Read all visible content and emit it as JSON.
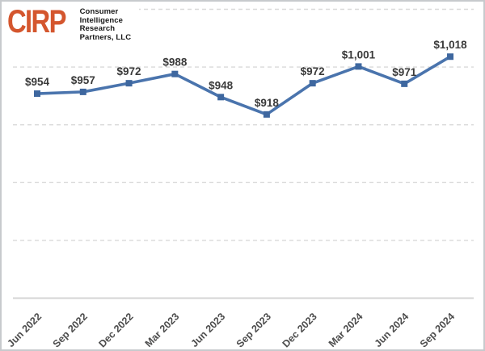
{
  "logo": {
    "abbr": "CIRP",
    "lines": [
      "Consumer",
      "Intelligence",
      "Research",
      "Partners, LLC"
    ]
  },
  "colors": {
    "logo_orange": "#d4562e",
    "logo_text": "#161616",
    "line": "#4a74ad",
    "marker": "#3e679f",
    "data_label": "#3a3a3a",
    "axis_label": "#4d4d4d",
    "gridline": "#d9d9d9",
    "axis_line": "#d4d4d4",
    "frame_border": "#c7cacd",
    "background": "#ffffff"
  },
  "chart_data": {
    "type": "line",
    "title": "",
    "xlabel": "",
    "ylabel": "",
    "categories": [
      "Jun 2022",
      "Sep 2022",
      "Dec 2022",
      "Mar 2023",
      "Jun 2023",
      "Sep 2023",
      "Dec 2023",
      "Mar 2024",
      "Jun 2024",
      "Sep 2024"
    ],
    "values": [
      954,
      957,
      972,
      988,
      948,
      918,
      972,
      1001,
      971,
      1018
    ],
    "labels": [
      "$954",
      "$957",
      "$972",
      "$988",
      "$948",
      "$918",
      "$972",
      "$1,001",
      "$971",
      "$1,018"
    ],
    "ylim": [
      600,
      1100
    ],
    "gridlines": [
      700,
      800,
      900,
      1000,
      1100
    ],
    "grid_style": "dashed",
    "legend": "none",
    "marker_shape": "square"
  }
}
